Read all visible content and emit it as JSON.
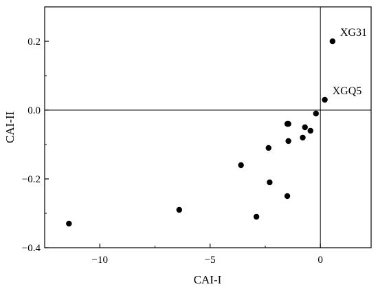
{
  "chart_data": {
    "type": "scatter",
    "title": "",
    "xlabel": "CAI-I",
    "ylabel": "CAI-II",
    "xlim": [
      -12.5,
      2.3
    ],
    "ylim": [
      -0.4,
      0.3
    ],
    "xticks": [
      -10,
      -5,
      0
    ],
    "yticks": [
      -0.4,
      -0.2,
      0.0,
      0.2
    ],
    "xtick_labels": [
      "−10",
      "−5",
      "0"
    ],
    "ytick_labels": [
      "−0.4",
      "−0.2",
      "0.0",
      "0.2"
    ],
    "grid": false,
    "reference_lines": {
      "x": 0,
      "y": 0
    },
    "point_color": "#000000",
    "series": [
      {
        "x": [
          -11.4,
          -6.4,
          -3.6,
          -2.9,
          -2.35,
          -2.3,
          -1.5,
          -1.5,
          -1.45,
          -1.45,
          -0.8,
          -0.7,
          -0.45,
          -0.2,
          0.2,
          0.55
        ],
        "y": [
          -0.33,
          -0.29,
          -0.16,
          -0.31,
          -0.11,
          -0.21,
          -0.25,
          -0.04,
          -0.09,
          -0.04,
          -0.08,
          -0.05,
          -0.06,
          -0.01,
          0.03,
          0.2
        ]
      }
    ],
    "annotations": [
      {
        "text": "XG31",
        "x": 0.55,
        "y": 0.2
      },
      {
        "text": "XGQ5",
        "x": 0.2,
        "y": 0.03
      }
    ]
  }
}
